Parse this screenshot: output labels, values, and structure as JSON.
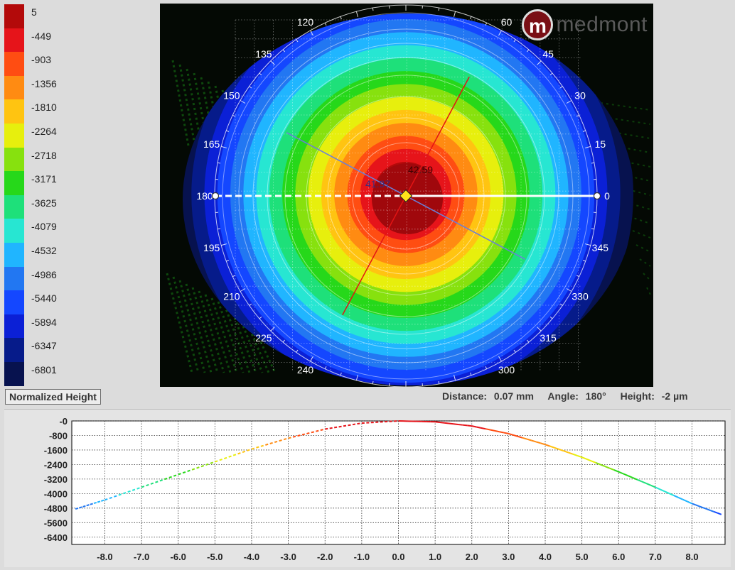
{
  "legend": {
    "title": "Normalized Height",
    "items": [
      {
        "label": "5",
        "color": "#b30a0a"
      },
      {
        "label": "-449",
        "color": "#e6141a"
      },
      {
        "label": "-903",
        "color": "#ff4d12"
      },
      {
        "label": "-1356",
        "color": "#ff8b12"
      },
      {
        "label": "-1810",
        "color": "#ffc411"
      },
      {
        "label": "-2264",
        "color": "#e7ef0d"
      },
      {
        "label": "-2718",
        "color": "#87e10e"
      },
      {
        "label": "-3171",
        "color": "#26d81a"
      },
      {
        "label": "-3625",
        "color": "#1ee07a"
      },
      {
        "label": "-4079",
        "color": "#27e6d2"
      },
      {
        "label": "-4532",
        "color": "#20b5ff"
      },
      {
        "label": "-4986",
        "color": "#2277f2"
      },
      {
        "label": "-5440",
        "color": "#1447ff"
      },
      {
        "label": "-5894",
        "color": "#0b20d6"
      },
      {
        "label": "-6347",
        "color": "#061b8a"
      },
      {
        "label": "-6801",
        "color": "#07124f"
      }
    ]
  },
  "logo": {
    "mark": "m",
    "text": "medmont"
  },
  "map": {
    "angle_labels": [
      "0",
      "15",
      "30",
      "45",
      "60",
      "120",
      "135",
      "150",
      "165",
      "180",
      "195",
      "210",
      "225",
      "240",
      "300",
      "315",
      "330",
      "345"
    ],
    "meridians": [
      {
        "label": "42.59",
        "angle_deg": 62
      },
      {
        "label": "41.97",
        "angle_deg": 152
      }
    ]
  },
  "status": {
    "distance_label": "Distance:",
    "distance_value": "0.07 mm",
    "angle_label": "Angle:",
    "angle_value": "180°",
    "height_label": "Height:",
    "height_value": "-2 µm"
  },
  "profile": {
    "y_ticks": [
      "-0",
      "-800",
      "-1600",
      "-2400",
      "-3200",
      "-4000",
      "-4800",
      "-5600",
      "-6400"
    ],
    "x_ticks": [
      "-8.0",
      "-7.0",
      "-6.0",
      "-5.0",
      "-4.0",
      "-3.0",
      "-2.0",
      "-1.0",
      "0.0",
      "1.0",
      "2.0",
      "3.0",
      "4.0",
      "5.0",
      "6.0",
      "7.0",
      "8.0"
    ]
  },
  "chart_data": {
    "type": "line",
    "xlabel": "",
    "ylabel": "",
    "xlim": [
      -8.9,
      8.9
    ],
    "ylim": [
      -6800,
      0
    ],
    "x": [
      -8.8,
      -8.0,
      -7.0,
      -6.0,
      -5.0,
      -4.0,
      -3.0,
      -2.0,
      -1.0,
      0.0,
      1.0,
      2.0,
      3.0,
      4.0,
      5.0,
      6.0,
      7.0,
      8.0,
      8.8
    ],
    "series": [
      {
        "values": [
          -4850,
          -4350,
          -3650,
          -2950,
          -2250,
          -1550,
          -950,
          -450,
          -120,
          0,
          -50,
          -280,
          -700,
          -1300,
          -2000,
          -2800,
          -3650,
          -4550,
          -5150
        ]
      }
    ]
  }
}
